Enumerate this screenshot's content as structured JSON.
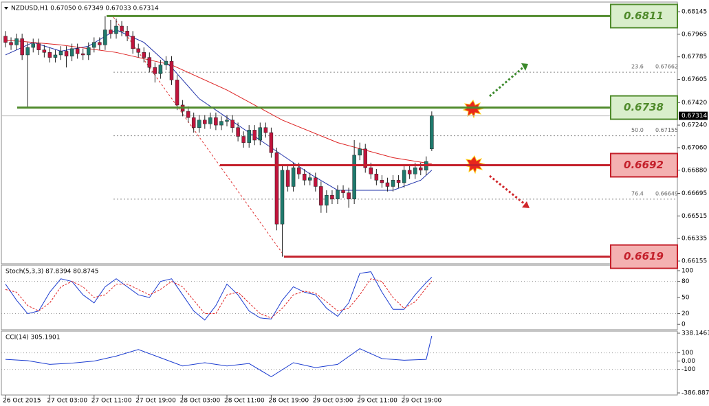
{
  "chart_data": [
    {
      "type": "candlestick",
      "title": "NZDUSD,H1  0.67050 0.67349 0.67033 0.67314",
      "bull_color": "#1f7a6d",
      "bear_color": "#c0143c",
      "ylim": [
        0.66133,
        0.68211
      ],
      "yticks": [
        0.68145,
        0.67965,
        0.67785,
        0.67605,
        {
          "value": 0.6742,
          "label": "0.67420"
        },
        {
          "value": 0.6724,
          "label": "0.67240"
        },
        {
          "value": 0.6706,
          "label": "0.67060"
        },
        {
          "value": 0.6688,
          "label": "0.66880"
        },
        0.66695,
        0.66515,
        0.66335,
        0.66155
      ],
      "last_price": 0.67314,
      "time_labels": [
        "26 Oct 2015",
        "27 Oct 03:00",
        "27 Oct 11:00",
        "27 Oct 19:00",
        "28 Oct 03:00",
        "28 Oct 11:00",
        "28 Oct 19:00",
        "29 Oct 03:00",
        "29 Oct 11:00",
        "29 Oct 19:00"
      ],
      "ohlc": [
        [
          0.6795,
          0.6799,
          0.6786,
          0.679
        ],
        [
          0.679,
          0.6794,
          0.6784,
          0.6788
        ],
        [
          0.6788,
          0.6797,
          0.6784,
          0.6793
        ],
        [
          0.6793,
          0.6797,
          0.6776,
          0.678
        ],
        [
          0.678,
          0.679,
          0.6738,
          0.6786
        ],
        [
          0.6786,
          0.6793,
          0.6782,
          0.6789
        ],
        [
          0.6789,
          0.6793,
          0.678,
          0.6784
        ],
        [
          0.6784,
          0.6788,
          0.6778,
          0.6782
        ],
        [
          0.6782,
          0.6786,
          0.6774,
          0.6778
        ],
        [
          0.6778,
          0.6784,
          0.6774,
          0.678
        ],
        [
          0.678,
          0.6787,
          0.6776,
          0.6783
        ],
        [
          0.6783,
          0.6787,
          0.677,
          0.6779
        ],
        [
          0.6779,
          0.6789,
          0.6775,
          0.6785
        ],
        [
          0.6785,
          0.6789,
          0.6777,
          0.6781
        ],
        [
          0.6781,
          0.6785,
          0.6776,
          0.678
        ],
        [
          0.678,
          0.679,
          0.6776,
          0.6786
        ],
        [
          0.6786,
          0.6794,
          0.6782,
          0.679
        ],
        [
          0.679,
          0.6794,
          0.6784,
          0.6788
        ],
        [
          0.6788,
          0.6811,
          0.6784,
          0.68
        ],
        [
          0.68,
          0.6808,
          0.6793,
          0.6797
        ],
        [
          0.6797,
          0.6809,
          0.6793,
          0.6803
        ],
        [
          0.6803,
          0.6807,
          0.6795,
          0.6799
        ],
        [
          0.6799,
          0.6803,
          0.6791,
          0.6795
        ],
        [
          0.6795,
          0.6799,
          0.6781,
          0.6785
        ],
        [
          0.6785,
          0.6789,
          0.6778,
          0.6782
        ],
        [
          0.6782,
          0.6786,
          0.6774,
          0.6778
        ],
        [
          0.6778,
          0.6782,
          0.6766,
          0.677
        ],
        [
          0.677,
          0.6774,
          0.6758,
          0.6765
        ],
        [
          0.6765,
          0.6776,
          0.6761,
          0.6772
        ],
        [
          0.6772,
          0.6779,
          0.6768,
          0.6775
        ],
        [
          0.6775,
          0.6779,
          0.6756,
          0.676
        ],
        [
          0.676,
          0.6764,
          0.6736,
          0.674
        ],
        [
          0.674,
          0.6744,
          0.6731,
          0.6735
        ],
        [
          0.6735,
          0.6739,
          0.6726,
          0.673
        ],
        [
          0.673,
          0.6734,
          0.6718,
          0.6722
        ],
        [
          0.6722,
          0.6732,
          0.6718,
          0.6728
        ],
        [
          0.6728,
          0.6732,
          0.6721,
          0.6725
        ],
        [
          0.6725,
          0.6734,
          0.6721,
          0.673
        ],
        [
          0.673,
          0.6734,
          0.672,
          0.6724
        ],
        [
          0.6724,
          0.6731,
          0.672,
          0.6727
        ],
        [
          0.6727,
          0.6732,
          0.6723,
          0.6728
        ],
        [
          0.6728,
          0.6732,
          0.6718,
          0.6722
        ],
        [
          0.6722,
          0.6726,
          0.6711,
          0.6715
        ],
        [
          0.6715,
          0.6719,
          0.6706,
          0.671
        ],
        [
          0.671,
          0.6724,
          0.6706,
          0.672
        ],
        [
          0.672,
          0.6724,
          0.6708,
          0.6712
        ],
        [
          0.6712,
          0.6726,
          0.6708,
          0.6722
        ],
        [
          0.6722,
          0.6726,
          0.6714,
          0.6718
        ],
        [
          0.6718,
          0.6722,
          0.6698,
          0.6702
        ],
        [
          0.6702,
          0.6706,
          0.664,
          0.6645
        ],
        [
          0.6645,
          0.6692,
          0.6619,
          0.6688
        ],
        [
          0.6688,
          0.6692,
          0.6671,
          0.6675
        ],
        [
          0.6675,
          0.6694,
          0.6671,
          0.669
        ],
        [
          0.669,
          0.6694,
          0.6681,
          0.6685
        ],
        [
          0.6685,
          0.6689,
          0.6676,
          0.668
        ],
        [
          0.668,
          0.6686,
          0.6676,
          0.6682
        ],
        [
          0.6682,
          0.6686,
          0.6671,
          0.6675
        ],
        [
          0.6675,
          0.6679,
          0.6654,
          0.666
        ],
        [
          0.666,
          0.6672,
          0.6654,
          0.6668
        ],
        [
          0.6668,
          0.6672,
          0.6661,
          0.6665
        ],
        [
          0.6665,
          0.6676,
          0.6661,
          0.6672
        ],
        [
          0.6672,
          0.6676,
          0.6666,
          0.667
        ],
        [
          0.667,
          0.6674,
          0.6658,
          0.6665
        ],
        [
          0.6665,
          0.6712,
          0.6661,
          0.67
        ],
        [
          0.67,
          0.671,
          0.6696,
          0.6705
        ],
        [
          0.6705,
          0.6709,
          0.6686,
          0.669
        ],
        [
          0.669,
          0.6694,
          0.6681,
          0.6685
        ],
        [
          0.6685,
          0.6689,
          0.6676,
          0.668
        ],
        [
          0.668,
          0.6684,
          0.6674,
          0.6678
        ],
        [
          0.6678,
          0.6682,
          0.6671,
          0.6675
        ],
        [
          0.6675,
          0.6684,
          0.6671,
          0.668
        ],
        [
          0.668,
          0.6684,
          0.6674,
          0.6678
        ],
        [
          0.6678,
          0.6692,
          0.6674,
          0.6688
        ],
        [
          0.6688,
          0.6692,
          0.6681,
          0.6685
        ],
        [
          0.6685,
          0.6694,
          0.6681,
          0.669
        ],
        [
          0.669,
          0.6694,
          0.6684,
          0.6688
        ],
        [
          0.6688,
          0.6699,
          0.6684,
          0.6695
        ],
        [
          0.6705,
          0.67349,
          0.67033,
          0.67314
        ]
      ],
      "series": [
        {
          "color": "#2233aa",
          "x": [
            0,
            5,
            10,
            15,
            20,
            25,
            30,
            35,
            40,
            45,
            50,
            55,
            60,
            65,
            70,
            75,
            77
          ],
          "values": [
            0.678,
            0.679,
            0.6783,
            0.6787,
            0.68,
            0.679,
            0.677,
            0.6745,
            0.673,
            0.6715,
            0.67,
            0.6685,
            0.6672,
            0.6672,
            0.6672,
            0.668,
            0.6688
          ]
        },
        {
          "color": "#dd2222",
          "x": [
            0,
            10,
            20,
            30,
            40,
            50,
            60,
            70,
            77
          ],
          "values": [
            0.6792,
            0.6788,
            0.6782,
            0.6772,
            0.6752,
            0.6728,
            0.671,
            0.6698,
            0.6693
          ]
        }
      ],
      "levels": [
        {
          "value": 0.6811,
          "color": "#4f8a2b",
          "fill": "#d9eecb"
        },
        {
          "value": 0.6738,
          "color": "#4f8a2b",
          "fill": "#d9eecb"
        },
        {
          "value": 0.6692,
          "color": "#c4202b",
          "fill": "#f4b1b1"
        },
        {
          "value": 0.6619,
          "color": "#c4202b",
          "fill": "#f4b1b1"
        }
      ],
      "fibo": [
        {
          "ratio": "23.6",
          "price": 0.67662
        },
        {
          "ratio": "50.0",
          "price": 0.67155
        },
        {
          "ratio": "76.4",
          "price": 0.66649
        }
      ]
    },
    {
      "type": "line",
      "title": "Stoch(5,3,3) 87.8394 80.8745",
      "ylim": [
        -10,
        109
      ],
      "yticks": [
        0,
        20,
        50,
        80,
        100
      ],
      "series": [
        {
          "color": "#1a3bd0",
          "x": [
            0,
            2,
            4,
            6,
            8,
            10,
            12,
            14,
            16,
            18,
            20,
            22,
            24,
            26,
            28,
            30,
            32,
            34,
            36,
            38,
            40,
            42,
            44,
            46,
            48,
            50,
            52,
            54,
            56,
            58,
            60,
            62,
            64,
            66,
            68,
            70,
            72,
            74,
            76,
            77
          ],
          "values": [
            75,
            45,
            20,
            25,
            60,
            85,
            80,
            55,
            40,
            70,
            85,
            70,
            55,
            50,
            80,
            85,
            55,
            25,
            8,
            35,
            75,
            55,
            25,
            12,
            10,
            45,
            70,
            60,
            55,
            30,
            15,
            40,
            95,
            98,
            60,
            28,
            28,
            55,
            78,
            87.8394
          ]
        },
        {
          "color": "#e02020",
          "dashed": true,
          "x": [
            0,
            2,
            4,
            6,
            8,
            10,
            12,
            14,
            16,
            18,
            20,
            22,
            24,
            26,
            28,
            30,
            32,
            34,
            36,
            38,
            40,
            42,
            44,
            46,
            48,
            50,
            52,
            54,
            56,
            58,
            60,
            62,
            64,
            66,
            68,
            70,
            72,
            74,
            76,
            77
          ],
          "values": [
            65,
            60,
            35,
            25,
            40,
            70,
            80,
            70,
            50,
            55,
            75,
            75,
            65,
            55,
            65,
            80,
            70,
            45,
            20,
            20,
            55,
            60,
            40,
            20,
            12,
            30,
            55,
            62,
            58,
            42,
            25,
            30,
            55,
            85,
            80,
            50,
            30,
            42,
            68,
            80.8745
          ]
        }
      ]
    },
    {
      "type": "line",
      "title": "CCI(14) 305.1901",
      "ylim": [
        -386.8874,
        338.1461
      ],
      "yticks": [
        338.1461,
        100,
        {
          "value": 0,
          "label": "0.00"
        },
        -100,
        -386.8874
      ],
      "series": [
        {
          "color": "#1a3bd0",
          "x": [
            0,
            4,
            8,
            12,
            16,
            20,
            24,
            28,
            32,
            36,
            40,
            44,
            48,
            52,
            56,
            60,
            64,
            68,
            72,
            76,
            77
          ],
          "values": [
            20,
            5,
            -40,
            -25,
            0,
            60,
            140,
            40,
            -60,
            -20,
            -60,
            -30,
            -190,
            -20,
            -80,
            -40,
            150,
            30,
            10,
            20,
            305.1901
          ]
        }
      ]
    }
  ]
}
